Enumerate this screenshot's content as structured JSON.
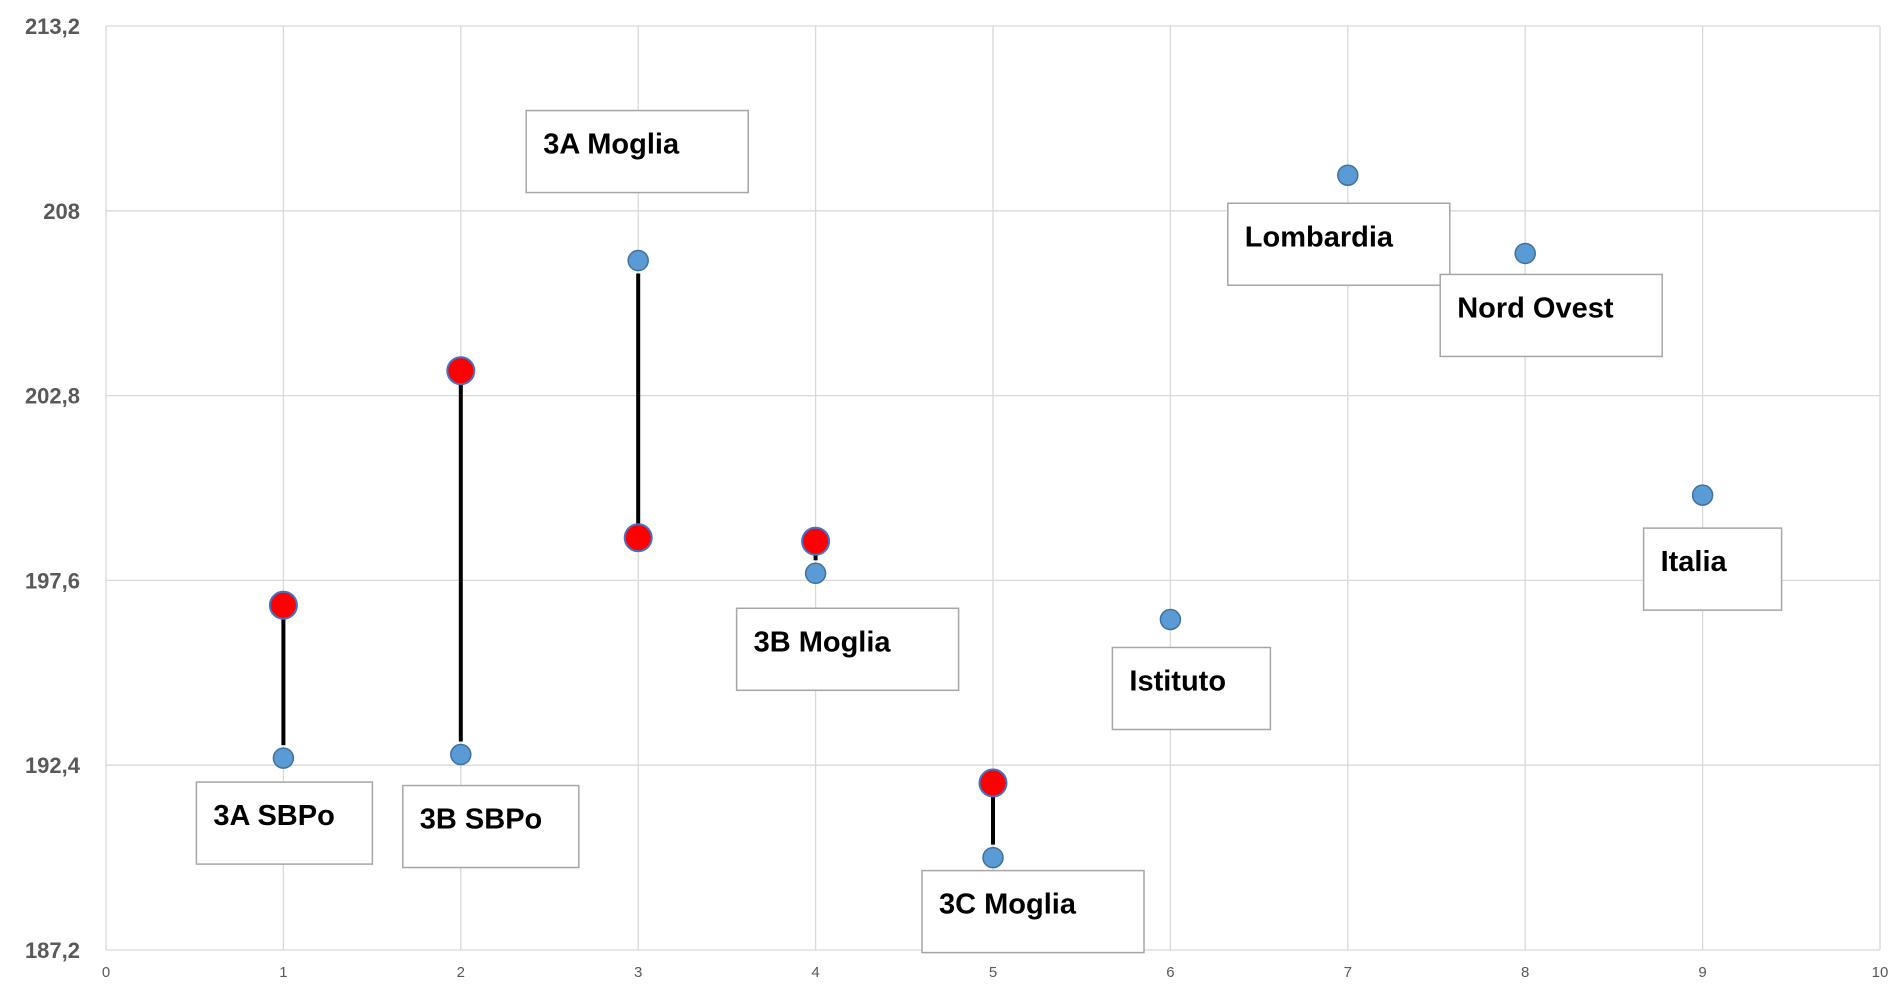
{
  "chart_data": {
    "type": "scatter",
    "title": "",
    "xlabel": "",
    "ylabel": "",
    "xlim": [
      0,
      10
    ],
    "ylim": [
      187.2,
      213.2
    ],
    "x_ticks": [
      0,
      1,
      2,
      3,
      4,
      5,
      6,
      7,
      8,
      9,
      10
    ],
    "x_tick_labels": [
      "0",
      "1",
      "2",
      "3",
      "4",
      "5",
      "6",
      "7",
      "8",
      "9",
      "10"
    ],
    "y_ticks": [
      187.2,
      192.4,
      197.6,
      202.8,
      208,
      213.2
    ],
    "y_tick_labels": [
      "187,2",
      "192,4",
      "197,6",
      "202,8",
      "208",
      "213,2"
    ],
    "grid": true,
    "colors": {
      "blue": "#5b9bd5",
      "blue_edge": "#41719c",
      "red": "#ff0000",
      "red_edge": "#4472c4",
      "grid": "#d9d9d9",
      "connector": "#000000"
    },
    "blue_points": [
      {
        "x": 1,
        "y": 192.6
      },
      {
        "x": 2,
        "y": 192.7
      },
      {
        "x": 3,
        "y": 206.6
      },
      {
        "x": 4,
        "y": 197.8
      },
      {
        "x": 5,
        "y": 189.8
      },
      {
        "x": 6,
        "y": 196.5
      },
      {
        "x": 7,
        "y": 209.0
      },
      {
        "x": 8,
        "y": 206.8
      },
      {
        "x": 9,
        "y": 200.0
      }
    ],
    "red_points": [
      {
        "x": 1,
        "y": 196.9
      },
      {
        "x": 2,
        "y": 203.5
      },
      {
        "x": 3,
        "y": 198.8
      },
      {
        "x": 4,
        "y": 198.7
      },
      {
        "x": 5,
        "y": 191.9
      }
    ],
    "labels": [
      {
        "text": "3A SBPo",
        "x": 1,
        "y": 192.6
      },
      {
        "text": "3B SBPo",
        "x": 2,
        "y": 192.7
      },
      {
        "text": "3A Moglia",
        "x": 3,
        "y": 206.6
      },
      {
        "text": "3B Moglia",
        "x": 4,
        "y": 197.8
      },
      {
        "text": "3C Moglia",
        "x": 5,
        "y": 189.8
      },
      {
        "text": "Istituto",
        "x": 6,
        "y": 196.5
      },
      {
        "text": "Lombardia",
        "x": 7,
        "y": 209.0
      },
      {
        "text": "Nord Ovest",
        "x": 8,
        "y": 206.8
      },
      {
        "text": "Italia",
        "x": 9,
        "y": 200.0
      }
    ]
  }
}
